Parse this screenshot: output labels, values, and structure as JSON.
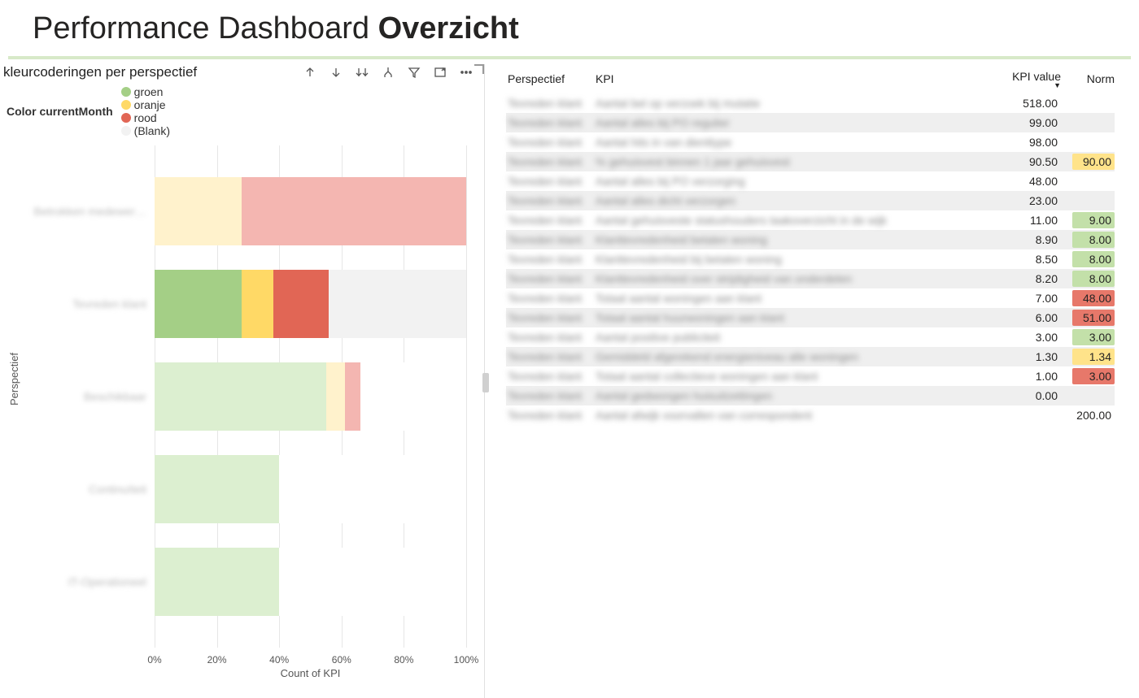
{
  "title_prefix": "Performance Dashboard ",
  "title_bold": "Overzicht",
  "accent_color": "#d7e9c8",
  "chart": {
    "title": "kleurcoderingen per perspectief",
    "legend_label": "Color currentMonth",
    "legend_items": [
      {
        "label": "groen",
        "color": "#a4cf86"
      },
      {
        "label": "oranje",
        "color": "#ffd966"
      },
      {
        "label": "rood",
        "color": "#e16655"
      },
      {
        "label": "(Blank)",
        "color": "#f2f2f2"
      }
    ],
    "y_axis_title": "Perspectief",
    "x_axis_title": "Count of KPI",
    "x_ticks": [
      "0%",
      "20%",
      "40%",
      "60%",
      "80%",
      "100%"
    ],
    "categories": [
      {
        "label": "Betrokken medewer…",
        "segments": [
          {
            "pct": 28,
            "color": "#fff2cc"
          },
          {
            "pct": 72,
            "color": "#f4b6b1"
          }
        ]
      },
      {
        "label": "Tevreden klant",
        "segments": [
          {
            "pct": 28,
            "color": "#a4cf86"
          },
          {
            "pct": 10,
            "color": "#ffd966"
          },
          {
            "pct": 18,
            "color": "#e16655"
          },
          {
            "pct": 44,
            "color": "#f2f2f2"
          }
        ]
      },
      {
        "label": "Beschikbaar",
        "segments": [
          {
            "pct": 55,
            "color": "#dcefd0"
          },
          {
            "pct": 6,
            "color": "#fff2cc"
          },
          {
            "pct": 5,
            "color": "#f4b6b1"
          },
          {
            "pct": 34,
            "color": "#ffffff"
          }
        ]
      },
      {
        "label": "Continuïteit",
        "segments": [
          {
            "pct": 40,
            "color": "#dcefd0"
          },
          {
            "pct": 60,
            "color": "#ffffff"
          }
        ]
      },
      {
        "label": "IT-Operationeel",
        "segments": [
          {
            "pct": 40,
            "color": "#dcefd0"
          },
          {
            "pct": 60,
            "color": "#ffffff"
          }
        ]
      }
    ]
  },
  "table": {
    "header_perspectief": "Perspectief",
    "header_kpi": "KPI",
    "header_value": "KPI value",
    "header_norm": "Norm",
    "status_colors": {
      "none": "",
      "green": "#c3e0a9",
      "yellow": "#ffe38a",
      "red": "#e7786a"
    },
    "rows": [
      {
        "p": "Tevreden klant",
        "k": "Aantal bel op verzoek bij mutatie",
        "v": "518.00",
        "n": "",
        "nstat": "none"
      },
      {
        "p": "Tevreden klant",
        "k": "Aantal alles bij PO regulier",
        "v": "99.00",
        "n": "",
        "nstat": "none"
      },
      {
        "p": "Tevreden klant",
        "k": "Aantal hits in van dienttype",
        "v": "98.00",
        "n": "",
        "nstat": "none"
      },
      {
        "p": "Tevreden klant",
        "k": "% gehuisvest binnen 1 jaar gehuisvest",
        "v": "90.50",
        "n": "90.00",
        "nstat": "yellow"
      },
      {
        "p": "Tevreden klant",
        "k": "Aantal alles bij PO verzorging",
        "v": "48.00",
        "n": "",
        "nstat": "none"
      },
      {
        "p": "Tevreden klant",
        "k": "Aantal alles dicht verzorgen",
        "v": "23.00",
        "n": "",
        "nstat": "none"
      },
      {
        "p": "Tevreden klant",
        "k": "Aantal gehuisveste statushouders taakoverzicht in de wijk",
        "v": "11.00",
        "n": "9.00",
        "nstat": "green"
      },
      {
        "p": "Tevreden klant",
        "k": "Klanttevredenheid betalen woning",
        "v": "8.90",
        "n": "8.00",
        "nstat": "green"
      },
      {
        "p": "Tevreden klant",
        "k": "Klanttevredenheid bij betalen woning",
        "v": "8.50",
        "n": "8.00",
        "nstat": "green"
      },
      {
        "p": "Tevreden klant",
        "k": "Klanttevredenheid over strijdigheid van onderdelen",
        "v": "8.20",
        "n": "8.00",
        "nstat": "green"
      },
      {
        "p": "Tevreden klant",
        "k": "Totaal aantal woningen aan klant",
        "v": "7.00",
        "n": "48.00",
        "nstat": "red"
      },
      {
        "p": "Tevreden klant",
        "k": "Totaal aantal huurwoningen aan klant",
        "v": "6.00",
        "n": "51.00",
        "nstat": "red"
      },
      {
        "p": "Tevreden klant",
        "k": "Aantal positive publiciteit",
        "v": "3.00",
        "n": "3.00",
        "nstat": "green"
      },
      {
        "p": "Tevreden klant",
        "k": "Gemiddeld afgerekend energieniveau alle woningen",
        "v": "1.30",
        "n": "1.34",
        "nstat": "yellow"
      },
      {
        "p": "Tevreden klant",
        "k": "Totaal aantal collectieve woningen aan klant",
        "v": "1.00",
        "n": "3.00",
        "nstat": "red"
      },
      {
        "p": "Tevreden klant",
        "k": "Aantal gedwongen huisuitzettingen",
        "v": "0.00",
        "n": "",
        "nstat": "none"
      },
      {
        "p": "Tevreden klant",
        "k": "Aantal afwijk voorvallen van correspondent",
        "v": "",
        "n": "200.00",
        "nstat": "none"
      }
    ]
  }
}
